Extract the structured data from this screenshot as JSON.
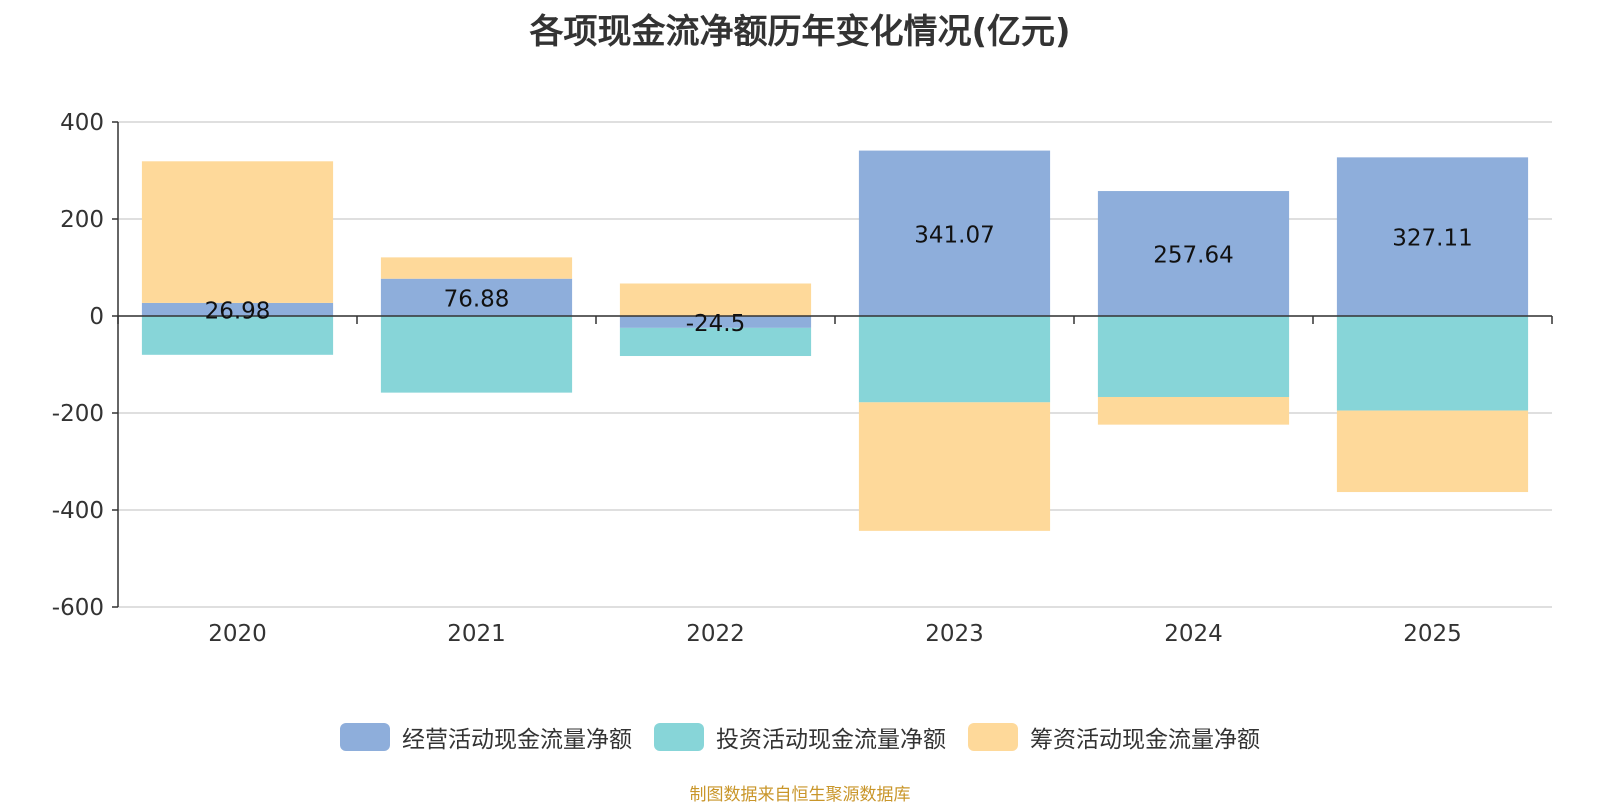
{
  "chart_data": {
    "type": "bar",
    "stacked": true,
    "title": "各项现金流净额历年变化情况(亿元)",
    "categories": [
      "2020",
      "2021",
      "2022",
      "2023",
      "2024",
      "2025"
    ],
    "series": [
      {
        "name": "经营活动现金流量净额",
        "color": "#8eaedb",
        "values": [
          26.98,
          76.88,
          -24.5,
          341.07,
          257.64,
          327.11
        ]
      },
      {
        "name": "投资活动现金流量净额",
        "color": "#87d5d8",
        "values": [
          -80,
          -158,
          -58,
          -178,
          -167,
          -195
        ]
      },
      {
        "name": "筹资活动现金流量净额",
        "color": "#fed99a",
        "values": [
          292,
          44,
          67,
          -265,
          -57,
          -168
        ]
      }
    ],
    "data_labels": [
      "26.98",
      "76.88",
      "-24.5",
      "341.07",
      "257.64",
      "327.11"
    ],
    "ylim": [
      -600,
      400
    ],
    "yticks": [
      400,
      200,
      0,
      -200,
      -400,
      -600
    ],
    "ytick_labels": [
      "400",
      "200",
      "0",
      "-200",
      "-400",
      "-600"
    ],
    "grid": true,
    "legend_position": "bottom"
  },
  "source": "制图数据来自恒生聚源数据库"
}
